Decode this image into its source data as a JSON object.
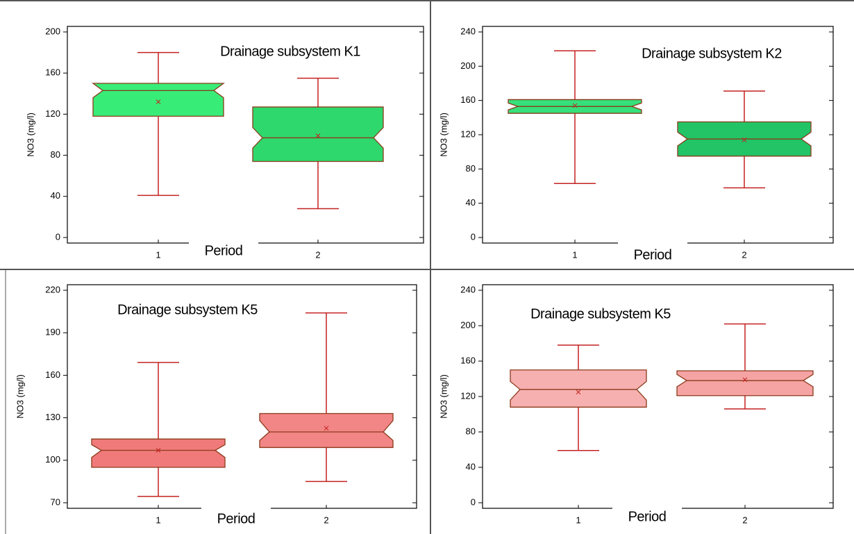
{
  "chart_data": [
    {
      "type": "box",
      "title": "Drainage subsystem K1",
      "x_label": "Period",
      "y_label": "NO3 (mg/l)",
      "categories": [
        "1",
        "2"
      ],
      "colors": [
        "#38ec78",
        "#2fd86c"
      ],
      "boxes": [
        {
          "whisker_low": 41,
          "q1": 118,
          "notch_low": 136,
          "median": 143,
          "notch_high": 150,
          "q3": 150,
          "whisker_high": 180,
          "mean": 132
        },
        {
          "whisker_low": 28,
          "q1": 74,
          "notch_low": 87,
          "median": 97,
          "notch_high": 107,
          "q3": 127,
          "whisker_high": 155,
          "mean": 99
        }
      ],
      "ylim": [
        0,
        200
      ],
      "yticks": [
        0,
        40,
        80,
        120,
        160,
        200
      ]
    },
    {
      "type": "box",
      "title": "Drainage subsystem K2",
      "x_label": "Period",
      "y_label": "NO3 (mg/l)",
      "categories": [
        "1",
        "2"
      ],
      "colors": [
        "#36e07a",
        "#22c466"
      ],
      "boxes": [
        {
          "whisker_low": 63,
          "q1": 145,
          "notch_low": 149,
          "median": 153,
          "notch_high": 157,
          "q3": 161,
          "whisker_high": 218,
          "mean": 154
        },
        {
          "whisker_low": 58,
          "q1": 95,
          "notch_low": 107,
          "median": 115,
          "notch_high": 123,
          "q3": 135,
          "whisker_high": 171,
          "mean": 114
        }
      ],
      "ylim": [
        0,
        240
      ],
      "yticks": [
        0,
        40,
        80,
        120,
        160,
        200,
        240
      ]
    },
    {
      "type": "box",
      "title": "Drainage subsystem K5",
      "x_label": "Period",
      "y_label": "NO3 (mg/l)",
      "categories": [
        "1",
        "2"
      ],
      "colors": [
        "#f07a7a",
        "#f28585"
      ],
      "boxes": [
        {
          "whisker_low": 74.5,
          "q1": 95,
          "notch_low": 102,
          "median": 107,
          "notch_high": 111,
          "q3": 115,
          "whisker_high": 169,
          "mean": 107
        },
        {
          "whisker_low": 85,
          "q1": 109,
          "notch_low": 114,
          "median": 120,
          "notch_high": 128,
          "q3": 133,
          "whisker_high": 204,
          "mean": 122.6
        }
      ],
      "ylim": [
        70,
        220
      ],
      "yticks": [
        70,
        100,
        130,
        160,
        190,
        220
      ]
    },
    {
      "type": "box",
      "title": "Drainage subsystem K5",
      "x_label": "Period",
      "y_label": "NO3 (mg/l)",
      "categories": [
        "1",
        "2"
      ],
      "colors": [
        "#f7b0b0",
        "#f5a3a3"
      ],
      "boxes": [
        {
          "whisker_low": 59,
          "q1": 108,
          "notch_low": 116,
          "median": 128,
          "notch_high": 137,
          "q3": 150,
          "whisker_high": 178,
          "mean": 125
        },
        {
          "whisker_low": 106,
          "q1": 121,
          "notch_low": 131,
          "median": 138,
          "notch_high": 145,
          "q3": 149,
          "whisker_high": 202,
          "mean": 139
        }
      ],
      "ylim": [
        0,
        240
      ],
      "yticks": [
        0,
        40,
        80,
        120,
        160,
        200,
        240
      ]
    }
  ]
}
